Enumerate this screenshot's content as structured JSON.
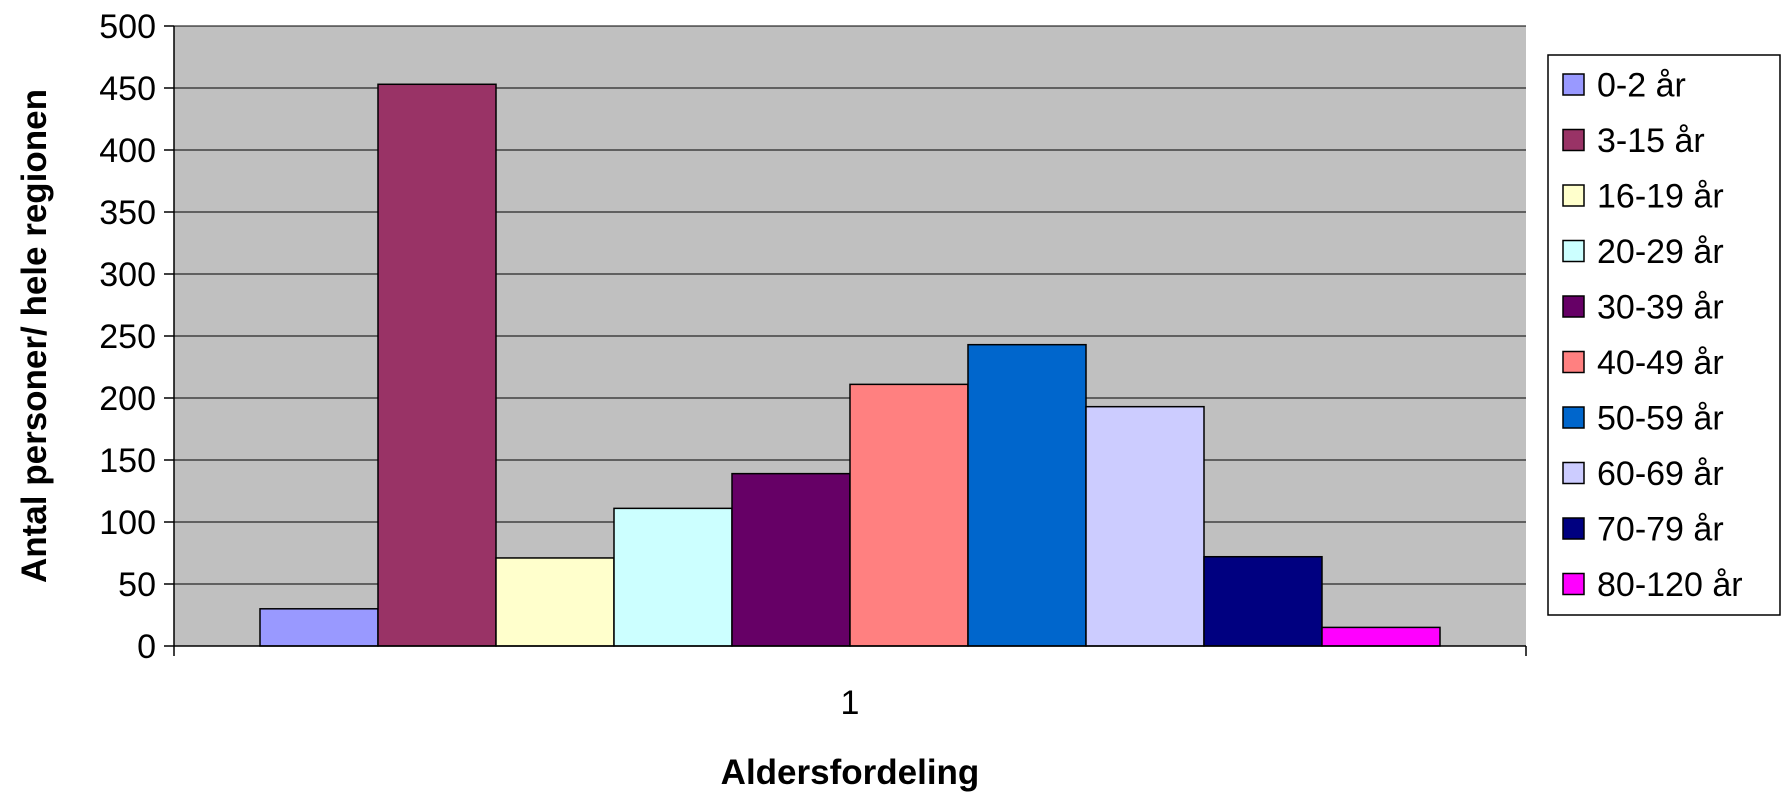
{
  "chart_data": {
    "type": "bar",
    "categories": [
      "1"
    ],
    "series": [
      {
        "name": "0-2 år",
        "values": [
          30
        ],
        "color": "#9999ff"
      },
      {
        "name": "3-15 år",
        "values": [
          453
        ],
        "color": "#993366"
      },
      {
        "name": "16-19 år",
        "values": [
          71
        ],
        "color": "#ffffcc"
      },
      {
        "name": "20-29 år",
        "values": [
          111
        ],
        "color": "#ccffff"
      },
      {
        "name": "30-39 år",
        "values": [
          139
        ],
        "color": "#660066"
      },
      {
        "name": "40-49 år",
        "values": [
          211
        ],
        "color": "#ff8080"
      },
      {
        "name": "50-59 år",
        "values": [
          243
        ],
        "color": "#0066cc"
      },
      {
        "name": "60-69 år",
        "values": [
          193
        ],
        "color": "#ccccff"
      },
      {
        "name": "70-79 år",
        "values": [
          72
        ],
        "color": "#000080"
      },
      {
        "name": "80-120 år",
        "values": [
          15
        ],
        "color": "#ff00ff"
      }
    ],
    "xlabel": "Aldersfordeling",
    "ylabel": "Antal personer/ hele regionen",
    "ylim": [
      0,
      500
    ],
    "yticks": [
      0,
      50,
      100,
      150,
      200,
      250,
      300,
      350,
      400,
      450,
      500
    ],
    "grid": true,
    "plot_background": "#c0c0c0",
    "legend_position": "right"
  }
}
